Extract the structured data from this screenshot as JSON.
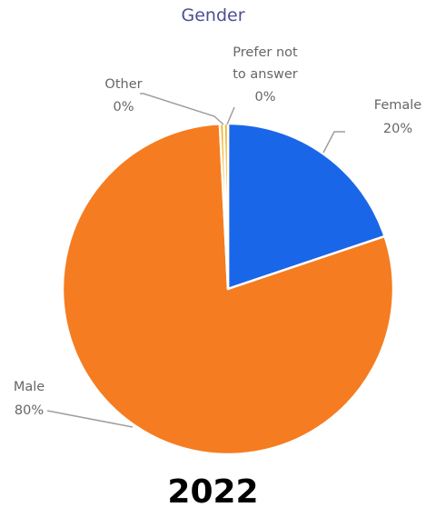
{
  "chart_data": {
    "type": "pie",
    "title": "Gender",
    "slices": [
      {
        "name": "Female",
        "value": 20,
        "label": "Female",
        "pct_label": "20%",
        "color": "#1a66e8"
      },
      {
        "name": "Male",
        "value": 80,
        "label": "Male",
        "pct_label": "80%",
        "color": "#f57c20"
      },
      {
        "name": "Other",
        "value": 0,
        "label": "Other",
        "pct_label": "0%",
        "color": "#f2b52c"
      },
      {
        "name": "Prefer not to answer",
        "value": 0,
        "label_lines": [
          "Prefer not",
          "to answer"
        ],
        "pct_label": "0%",
        "color": "#f2b52c"
      }
    ]
  },
  "caption": "2022"
}
